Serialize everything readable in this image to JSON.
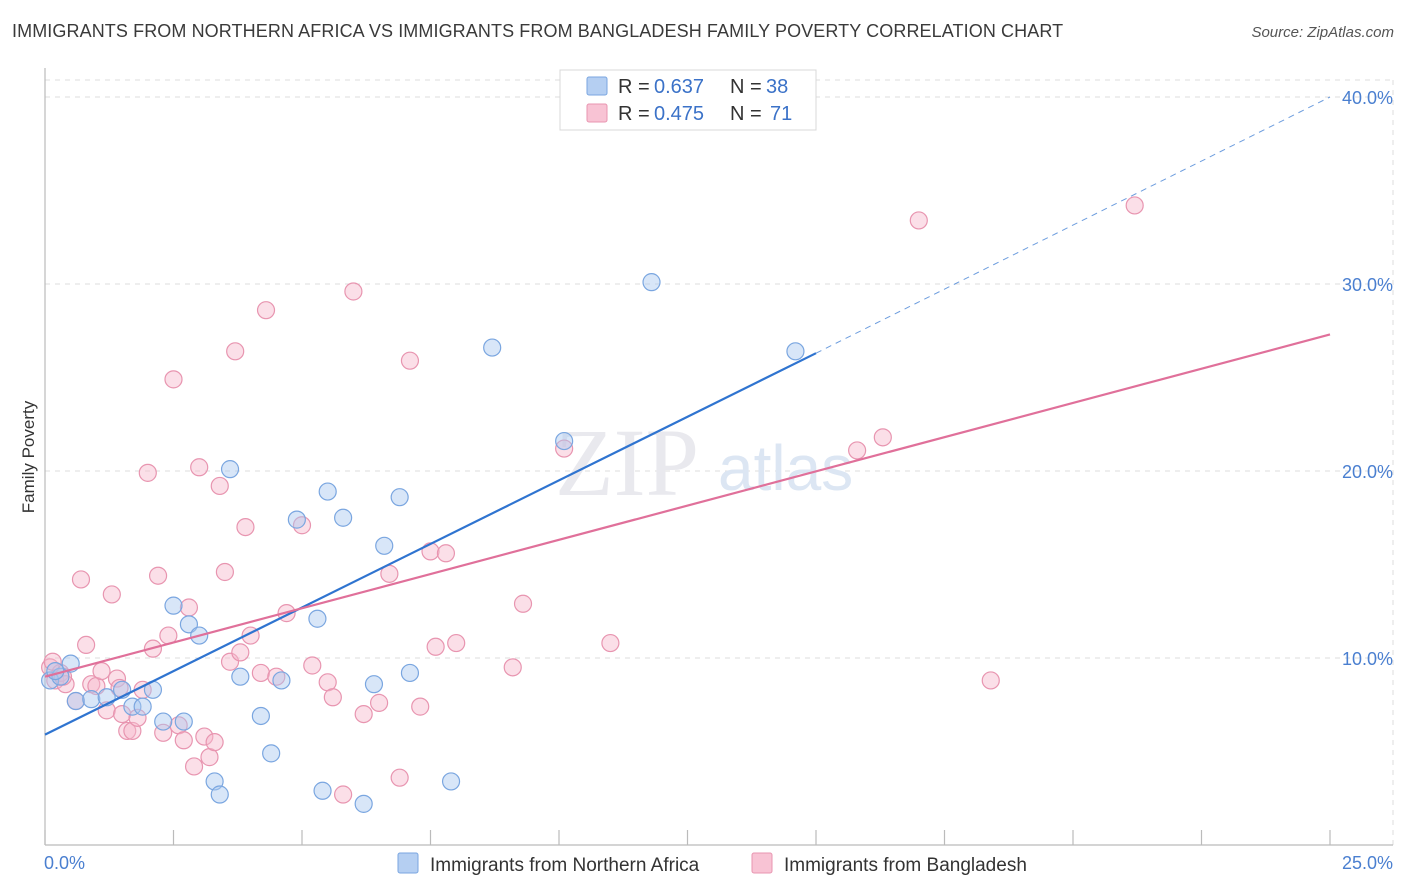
{
  "title": "IMMIGRANTS FROM NORTHERN AFRICA VS IMMIGRANTS FROM BANGLADESH FAMILY POVERTY CORRELATION CHART",
  "source": "Source: ZipAtlas.com",
  "watermark": {
    "zip": "ZIP",
    "atlas": "atlas"
  },
  "colors": {
    "blue_fill": "#a9c8f0",
    "blue_stroke": "#7aa6e0",
    "blue_line": "#2f74d0",
    "pink_fill": "#f6b7cb",
    "pink_stroke": "#e895b0",
    "pink_line": "#e0709a",
    "grid": "#dddddd",
    "axis": "#bbbbbb",
    "tick_text": "#4a7fd0"
  },
  "legend": {
    "rows": [
      {
        "r_label": "R =",
        "r_value": "0.637",
        "n_label": "N =",
        "n_value": "38"
      },
      {
        "r_label": "R =",
        "r_value": "0.475",
        "n_label": "N =",
        "n_value": "71"
      }
    ]
  },
  "chart_data": {
    "type": "scatter",
    "title": "IMMIGRANTS FROM NORTHERN AFRICA VS IMMIGRANTS FROM BANGLADESH FAMILY POVERTY CORRELATION CHART",
    "xlabel": "",
    "ylabel": "Family Poverty",
    "xlim": [
      0,
      25
    ],
    "ylim": [
      0,
      40
    ],
    "x_tick_labels": [
      "0.0%",
      "25.0%"
    ],
    "y_ticks": [
      10,
      20,
      30,
      40
    ],
    "y_tick_labels": [
      "10.0%",
      "20.0%",
      "30.0%",
      "40.0%"
    ],
    "grid": true,
    "series": [
      {
        "name": "Immigrants from Northern Africa",
        "color": "blue",
        "R": 0.637,
        "N": 38,
        "trend": {
          "x0": 0,
          "y0": 5.9,
          "x1": 15.0,
          "y1": 26.3,
          "dashed_to_x": 25,
          "dashed_to_y": 40.0
        },
        "points": [
          [
            0.1,
            8.8
          ],
          [
            0.3,
            9.0
          ],
          [
            0.5,
            9.7
          ],
          [
            0.6,
            7.7
          ],
          [
            0.9,
            7.8
          ],
          [
            1.2,
            7.9
          ],
          [
            1.5,
            8.3
          ],
          [
            1.7,
            7.4
          ],
          [
            1.9,
            7.4
          ],
          [
            2.1,
            8.3
          ],
          [
            2.3,
            6.6
          ],
          [
            2.5,
            12.8
          ],
          [
            2.7,
            6.6
          ],
          [
            2.8,
            11.8
          ],
          [
            3.0,
            11.2
          ],
          [
            3.3,
            3.4
          ],
          [
            3.4,
            2.7
          ],
          [
            3.6,
            20.1
          ],
          [
            3.8,
            9.0
          ],
          [
            4.2,
            6.9
          ],
          [
            4.4,
            4.9
          ],
          [
            4.6,
            8.8
          ],
          [
            4.9,
            17.4
          ],
          [
            5.3,
            12.1
          ],
          [
            5.4,
            2.9
          ],
          [
            5.5,
            18.9
          ],
          [
            5.8,
            17.5
          ],
          [
            6.2,
            2.2
          ],
          [
            6.4,
            8.6
          ],
          [
            6.6,
            16.0
          ],
          [
            6.9,
            18.6
          ],
          [
            7.1,
            9.2
          ],
          [
            7.9,
            3.4
          ],
          [
            8.7,
            26.6
          ],
          [
            10.1,
            21.6
          ],
          [
            11.8,
            30.1
          ],
          [
            14.6,
            26.4
          ],
          [
            0.2,
            9.3
          ]
        ]
      },
      {
        "name": "Immigrants from Bangladesh",
        "color": "pink",
        "R": 0.475,
        "N": 71,
        "trend": {
          "x0": 0,
          "y0": 9.0,
          "x1": 25,
          "y1": 27.3
        },
        "points": [
          [
            0.1,
            9.5
          ],
          [
            0.2,
            8.8
          ],
          [
            0.3,
            9.2
          ],
          [
            0.4,
            8.6
          ],
          [
            0.6,
            7.7
          ],
          [
            0.7,
            14.2
          ],
          [
            0.8,
            10.7
          ],
          [
            0.9,
            8.6
          ],
          [
            1.0,
            8.5
          ],
          [
            1.1,
            9.3
          ],
          [
            1.2,
            7.2
          ],
          [
            1.3,
            13.4
          ],
          [
            1.4,
            8.9
          ],
          [
            1.5,
            7.0
          ],
          [
            1.6,
            6.1
          ],
          [
            1.7,
            6.1
          ],
          [
            1.8,
            6.8
          ],
          [
            1.9,
            8.3
          ],
          [
            2.0,
            19.9
          ],
          [
            2.1,
            10.5
          ],
          [
            2.2,
            14.4
          ],
          [
            2.3,
            6.0
          ],
          [
            2.4,
            11.2
          ],
          [
            2.5,
            24.9
          ],
          [
            2.6,
            6.4
          ],
          [
            2.7,
            5.6
          ],
          [
            2.8,
            12.7
          ],
          [
            2.9,
            4.2
          ],
          [
            3.0,
            20.2
          ],
          [
            3.1,
            5.8
          ],
          [
            3.2,
            4.7
          ],
          [
            3.3,
            5.5
          ],
          [
            3.4,
            19.2
          ],
          [
            3.5,
            14.6
          ],
          [
            3.6,
            9.8
          ],
          [
            3.7,
            26.4
          ],
          [
            3.8,
            10.3
          ],
          [
            3.9,
            17.0
          ],
          [
            4.0,
            11.2
          ],
          [
            4.2,
            9.2
          ],
          [
            4.3,
            28.6
          ],
          [
            4.5,
            9.0
          ],
          [
            4.7,
            12.4
          ],
          [
            5.0,
            17.1
          ],
          [
            5.2,
            9.6
          ],
          [
            5.5,
            8.7
          ],
          [
            5.6,
            7.9
          ],
          [
            5.8,
            2.7
          ],
          [
            6.0,
            29.6
          ],
          [
            6.2,
            7.0
          ],
          [
            6.5,
            7.6
          ],
          [
            6.7,
            14.5
          ],
          [
            6.9,
            3.6
          ],
          [
            7.1,
            25.9
          ],
          [
            7.3,
            7.4
          ],
          [
            7.5,
            15.7
          ],
          [
            7.6,
            10.6
          ],
          [
            7.8,
            15.6
          ],
          [
            8.0,
            10.8
          ],
          [
            9.1,
            9.5
          ],
          [
            9.3,
            12.9
          ],
          [
            10.1,
            21.2
          ],
          [
            11.0,
            10.8
          ],
          [
            15.8,
            21.1
          ],
          [
            16.3,
            21.8
          ],
          [
            17.0,
            33.4
          ],
          [
            18.4,
            8.8
          ],
          [
            21.2,
            34.2
          ],
          [
            0.15,
            9.8
          ],
          [
            0.35,
            9.0
          ],
          [
            1.45,
            8.4
          ]
        ]
      }
    ]
  },
  "bottom_legend": [
    {
      "label": "Immigrants from Northern Africa"
    },
    {
      "label": "Immigrants from Bangladesh"
    }
  ]
}
